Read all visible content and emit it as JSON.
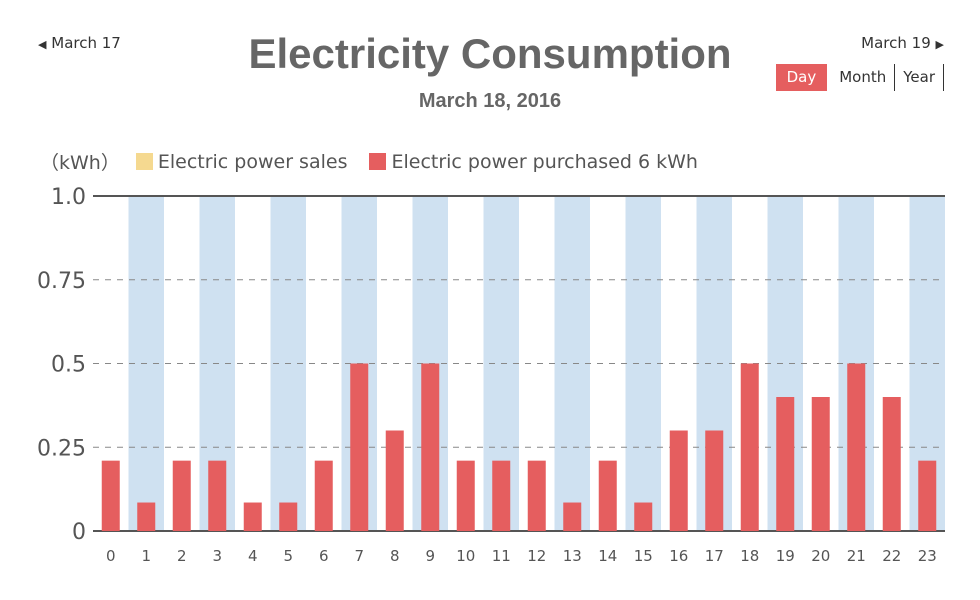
{
  "nav": {
    "prev_label": "March 17",
    "next_label": "March 19"
  },
  "title": "Electricity Consumption",
  "subtitle": "March 18, 2016",
  "range_tabs": [
    "Day",
    "Month",
    "Year"
  ],
  "active_tab": "Day",
  "colors": {
    "sales": "#f5d990",
    "purchased": "#e55e5f",
    "band": "#cfe1f1",
    "accent": "#e55e5f"
  },
  "chart_data": {
    "type": "bar",
    "ylabel": "（kWh）",
    "ylim": [
      0,
      1.0
    ],
    "yticks": [
      "0",
      "0.25",
      "0.5",
      "0.75",
      "1.0"
    ],
    "ytick_values": [
      0,
      0.25,
      0.5,
      0.75,
      1.0
    ],
    "categories": [
      "0",
      "1",
      "2",
      "3",
      "4",
      "5",
      "6",
      "7",
      "8",
      "9",
      "10",
      "11",
      "12",
      "13",
      "14",
      "15",
      "16",
      "17",
      "18",
      "19",
      "20",
      "21",
      "22",
      "23"
    ],
    "grid": "dashed horizontal",
    "legend_position": "top-left",
    "series": [
      {
        "name": "Electric power sales",
        "values": [
          0,
          0,
          0,
          0,
          0,
          0,
          0,
          0,
          0,
          0,
          0,
          0,
          0,
          0,
          0,
          0,
          0,
          0,
          0,
          0,
          0,
          0,
          0,
          0
        ]
      },
      {
        "name": "Electric power purchased 6 kWh",
        "values": [
          0.21,
          0.085,
          0.21,
          0.21,
          0.085,
          0.085,
          0.21,
          0.5,
          0.3,
          0.5,
          0.21,
          0.21,
          0.21,
          0.085,
          0.21,
          0.085,
          0.3,
          0.3,
          0.5,
          0.4,
          0.4,
          0.5,
          0.4,
          0.21
        ]
      }
    ]
  }
}
